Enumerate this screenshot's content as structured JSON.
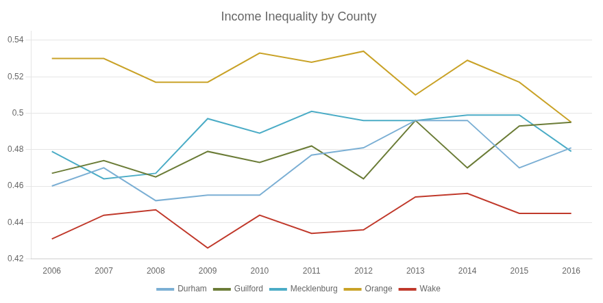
{
  "chart_data": {
    "type": "line",
    "title": "Income Inequality by County",
    "x": [
      2006,
      2007,
      2008,
      2009,
      2010,
      2011,
      2012,
      2013,
      2014,
      2015,
      2016
    ],
    "series": [
      {
        "name": "Durham",
        "color": "#7bafd4",
        "values": [
          0.46,
          0.47,
          0.452,
          0.455,
          0.455,
          0.477,
          0.481,
          0.496,
          0.496,
          0.47,
          0.481
        ]
      },
      {
        "name": "Guilford",
        "color": "#6b7c37",
        "values": [
          0.467,
          0.474,
          0.465,
          0.479,
          0.473,
          0.482,
          0.464,
          0.496,
          0.47,
          0.493,
          0.495
        ]
      },
      {
        "name": "Mecklenburg",
        "color": "#4bacc6",
        "values": [
          0.479,
          0.464,
          0.467,
          0.497,
          0.489,
          0.501,
          0.496,
          0.496,
          0.499,
          0.499,
          0.479
        ]
      },
      {
        "name": "Orange",
        "color": "#c9a227",
        "values": [
          0.53,
          0.53,
          0.517,
          0.517,
          0.533,
          0.528,
          0.534,
          0.51,
          0.529,
          0.517,
          0.495
        ]
      },
      {
        "name": "Wake",
        "color": "#c0392b",
        "values": [
          0.431,
          0.444,
          0.447,
          0.426,
          0.444,
          0.434,
          0.436,
          0.454,
          0.456,
          0.445,
          0.445
        ]
      }
    ],
    "xlim": [
      2005.6,
      2016.4
    ],
    "xticks": [
      2006,
      2007,
      2008,
      2009,
      2010,
      2011,
      2012,
      2013,
      2014,
      2015,
      2016
    ],
    "ylim": [
      0.42,
      0.545
    ],
    "yticks": [
      0.42,
      0.44,
      0.46,
      0.48,
      0.5,
      0.52,
      0.54
    ],
    "grid": "y",
    "legend": "bottom",
    "marker": "none"
  }
}
